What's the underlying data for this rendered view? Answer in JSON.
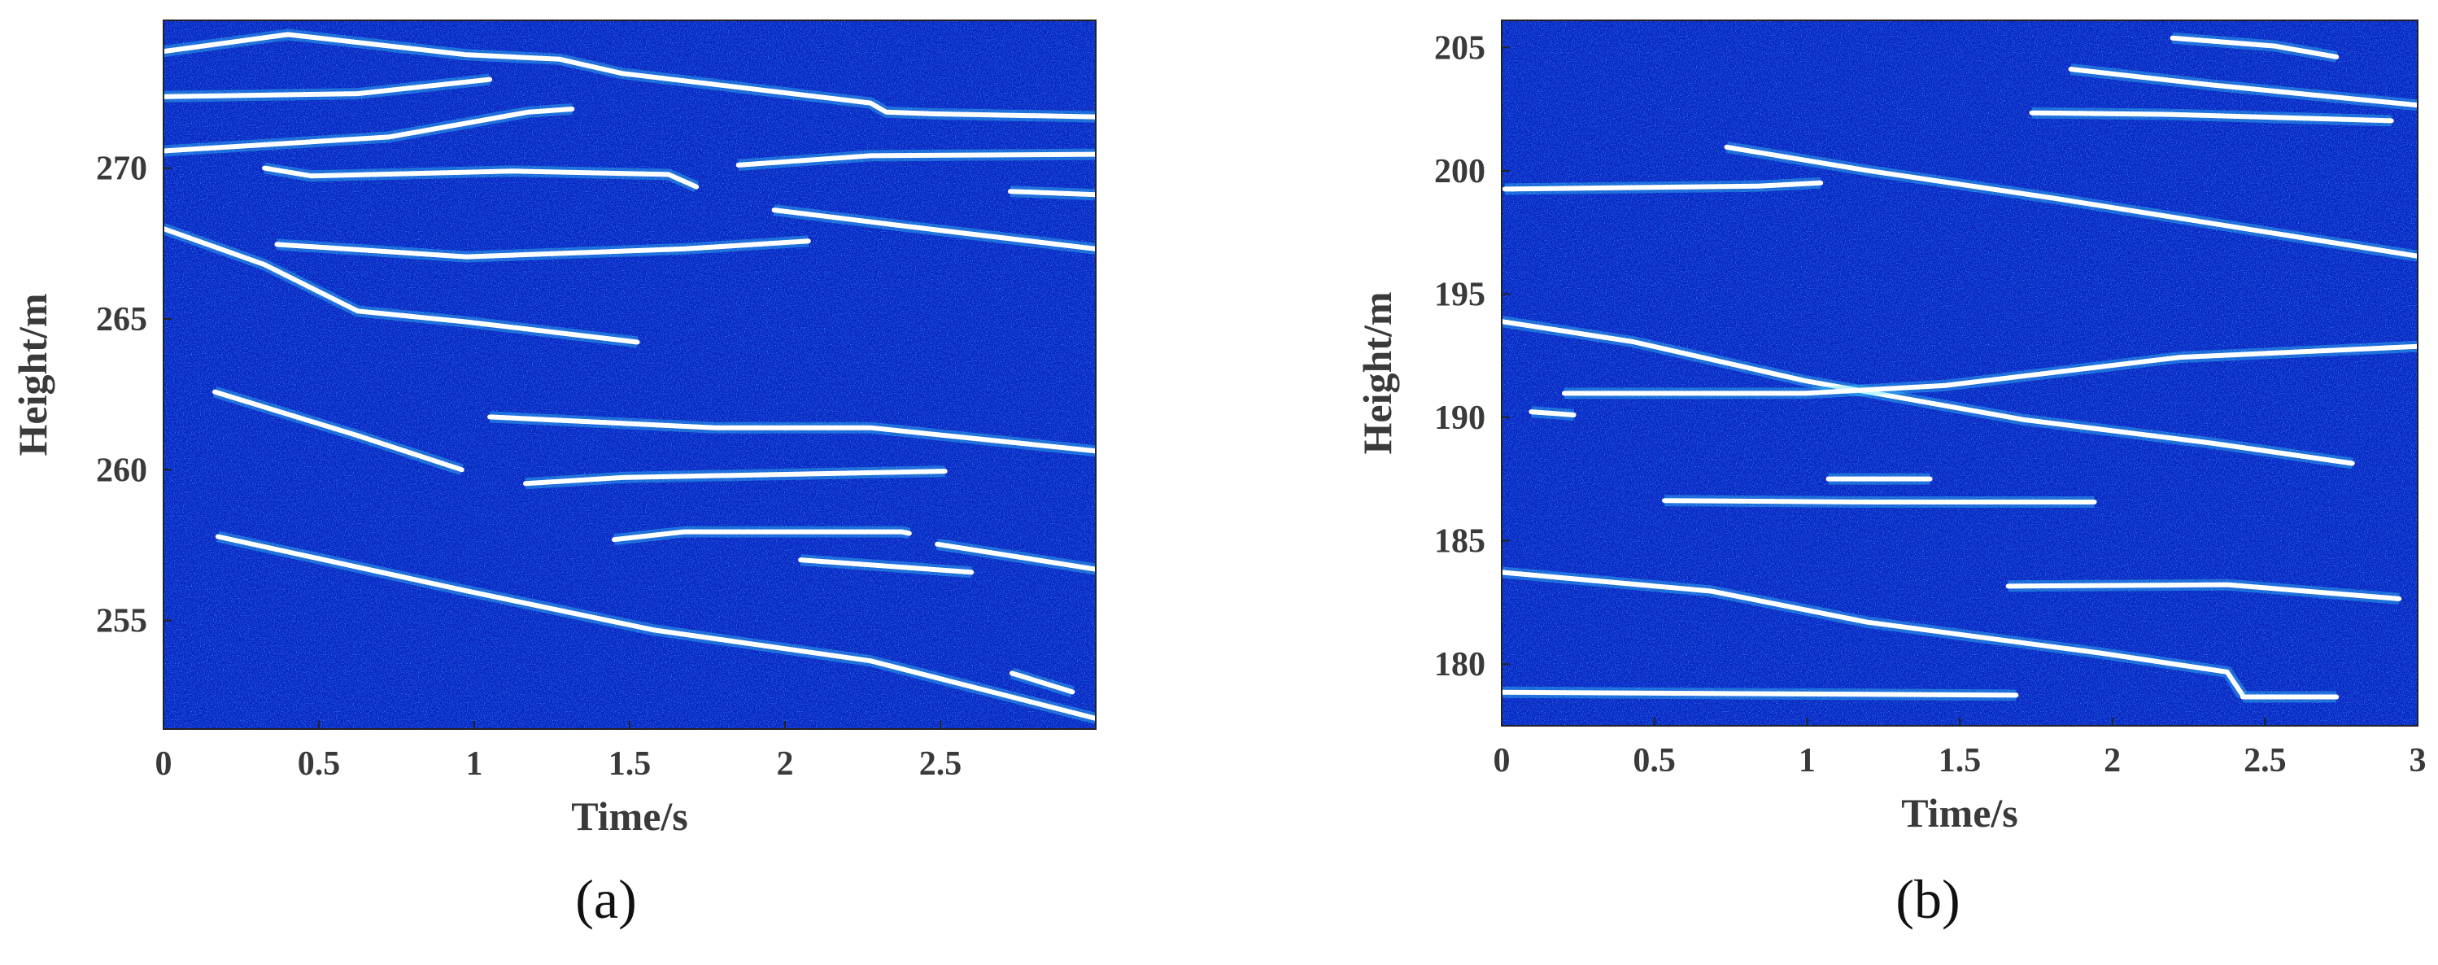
{
  "chart_data": [
    {
      "type": "line",
      "caption": "(a)",
      "xlabel": "Time/s",
      "ylabel": "Height/m",
      "xlim": [
        0,
        3.0
      ],
      "ylim": [
        251.4,
        274.9
      ],
      "xticks": [
        0,
        0.5,
        1,
        1.5,
        2,
        2.5
      ],
      "yticks": [
        255,
        260,
        265,
        270
      ],
      "series": [
        {
          "color": "#ffffff",
          "x": [
            0,
            0.4,
            0.975,
            1.275,
            1.475,
            2.275,
            2.325,
            2.475,
            3.0
          ],
          "values": [
            273.87,
            274.43,
            273.76,
            273.61,
            273.14,
            272.16,
            271.86,
            271.8,
            271.7
          ]
        },
        {
          "color": "#ffffff",
          "x": [
            0,
            0.625,
            1.05
          ],
          "values": [
            272.37,
            272.47,
            272.94
          ]
        },
        {
          "color": "#ffffff",
          "x": [
            0,
            0.725,
            1.175,
            1.315
          ],
          "values": [
            270.57,
            271.03,
            271.86,
            271.96
          ]
        },
        {
          "color": "#ffffff",
          "x": [
            0.325,
            0.475,
            1.125,
            1.625,
            1.715
          ],
          "values": [
            270,
            269.74,
            269.9,
            269.79,
            269.38
          ]
        },
        {
          "color": "#ffffff",
          "x": [
            1.85,
            2.275,
            3.0
          ],
          "values": [
            270.1,
            270.41,
            270.46
          ]
        },
        {
          "color": "#ffffff",
          "x": [
            2.725,
            3.0
          ],
          "values": [
            269.23,
            269.12
          ]
        },
        {
          "color": "#ffffff",
          "x": [
            1.965,
            2.375,
            3.0
          ],
          "values": [
            268.61,
            268.09,
            267.32
          ]
        },
        {
          "color": "#ffffff",
          "x": [
            0.365,
            0.975,
            1.675,
            2.075
          ],
          "values": [
            267.47,
            267.06,
            267.32,
            267.58
          ]
        },
        {
          "color": "#ffffff",
          "x": [
            0,
            0.325,
            0.625,
            0.975,
            1.525
          ],
          "values": [
            267.99,
            266.8,
            265.26,
            264.9,
            264.23
          ]
        },
        {
          "color": "#ffffff",
          "x": [
            0.165,
            0.625,
            0.96
          ],
          "values": [
            262.58,
            261.13,
            260.0
          ]
        },
        {
          "color": "#ffffff",
          "x": [
            1.05,
            1.775,
            2.275,
            3.0
          ],
          "values": [
            261.75,
            261.39,
            261.39,
            260.62
          ]
        },
        {
          "color": "#ffffff",
          "x": [
            1.165,
            1.475,
            2.515
          ],
          "values": [
            259.54,
            259.74,
            259.95
          ]
        },
        {
          "color": "#ffffff",
          "x": [
            1.45,
            1.675,
            2.375,
            2.4
          ],
          "values": [
            257.68,
            257.94,
            257.94,
            257.89
          ]
        },
        {
          "color": "#ffffff",
          "x": [
            2.05,
            2.6
          ],
          "values": [
            257.01,
            256.6
          ]
        },
        {
          "color": "#ffffff",
          "x": [
            2.49,
            3.0
          ],
          "values": [
            257.53,
            256.7
          ]
        },
        {
          "color": "#ffffff",
          "x": [
            0.175,
            0.975,
            1.575,
            2.275,
            3.0
          ],
          "values": [
            257.78,
            255.98,
            254.69,
            253.66,
            251.75
          ]
        },
        {
          "color": "#ffffff",
          "x": [
            2.73,
            2.925
          ],
          "values": [
            253.25,
            252.63
          ]
        }
      ]
    },
    {
      "type": "line",
      "caption": "(b)",
      "xlabel": "Time/s",
      "ylabel": "Height/m",
      "xlim": [
        0,
        3
      ],
      "ylim": [
        177.5,
        206.1
      ],
      "xticks": [
        0,
        0.5,
        1,
        1.5,
        2,
        2.5,
        3
      ],
      "yticks": [
        180,
        185,
        190,
        195,
        200,
        205
      ],
      "series": [
        {
          "color": "#ffffff",
          "x": [
            2.197,
            2.53,
            2.734
          ],
          "values": [
            205.38,
            205.06,
            204.62
          ]
        },
        {
          "color": "#ffffff",
          "x": [
            1.864,
            2.325,
            3.0
          ],
          "values": [
            204.12,
            203.48,
            202.66
          ]
        },
        {
          "color": "#ffffff",
          "x": [
            1.736,
            2.171,
            2.914
          ],
          "values": [
            202.35,
            202.29,
            202.03
          ]
        },
        {
          "color": "#ffffff",
          "x": [
            0.01,
            0.84,
            1.045
          ],
          "values": [
            199.26,
            199.38,
            199.51
          ]
        },
        {
          "color": "#ffffff",
          "x": [
            0.737,
            1.198,
            1.813,
            3.0
          ],
          "values": [
            200.96,
            200.01,
            198.88,
            196.54
          ]
        },
        {
          "color": "#ffffff",
          "x": [
            0,
            0.43,
            0.993,
            1.71,
            2.325,
            2.786
          ],
          "values": [
            193.89,
            193.07,
            191.49,
            189.91,
            188.96,
            188.14
          ]
        },
        {
          "color": "#ffffff",
          "x": [
            0.205,
            0.993,
            1.454,
            2.222,
            3.0
          ],
          "values": [
            190.98,
            190.98,
            191.3,
            192.44,
            192.88
          ]
        },
        {
          "color": "#ffffff",
          "x": [
            0.097,
            0.236
          ],
          "values": [
            190.23,
            190.1
          ]
        },
        {
          "color": "#ffffff",
          "x": [
            1.07,
            1.403
          ],
          "values": [
            187.51,
            187.51
          ]
        },
        {
          "color": "#ffffff",
          "x": [
            0.533,
            1.198,
            1.941
          ],
          "values": [
            186.63,
            186.57,
            186.57
          ]
        },
        {
          "color": "#ffffff",
          "x": [
            1.659,
            2.376,
            2.939
          ],
          "values": [
            183.16,
            183.22,
            182.65
          ]
        },
        {
          "color": "#ffffff",
          "x": [
            0,
            0.686,
            1.198,
            1.966,
            2.376,
            2.427
          ],
          "values": [
            183.72,
            182.96,
            181.7,
            180.44,
            179.68,
            178.74
          ]
        },
        {
          "color": "#ffffff",
          "x": [
            0,
            1.685
          ],
          "values": [
            178.86,
            178.74
          ]
        },
        {
          "color": "#ffffff",
          "x": [
            2.427,
            2.734
          ],
          "values": [
            178.67,
            178.67
          ]
        }
      ]
    }
  ]
}
